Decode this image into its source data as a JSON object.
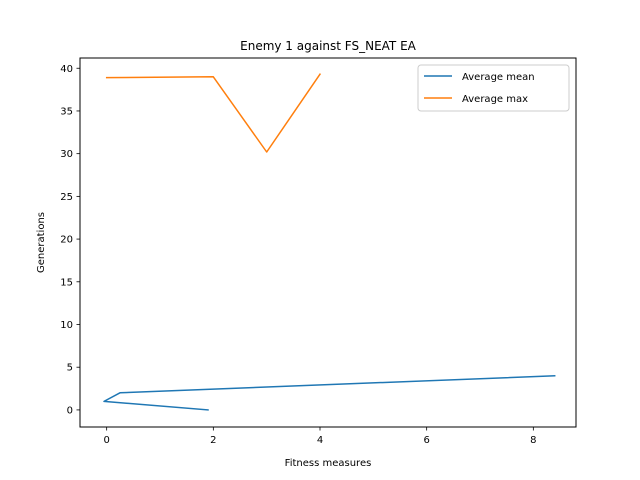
{
  "chart_data": {
    "type": "line",
    "title": "Enemy 1 against FS_NEAT EA",
    "xlabel": "Fitness measures",
    "ylabel": "Generations",
    "xlim": [
      -0.5,
      8.8
    ],
    "ylim": [
      -2.0,
      41.2
    ],
    "xticks": [
      0,
      2,
      4,
      6,
      8
    ],
    "yticks": [
      0,
      5,
      10,
      15,
      20,
      25,
      30,
      35,
      40
    ],
    "xtick_labels": [
      "0",
      "2",
      "4",
      "6",
      "8"
    ],
    "ytick_labels": [
      "0",
      "5",
      "10",
      "15",
      "20",
      "25",
      "30",
      "35",
      "40"
    ],
    "grid": false,
    "legend_position": "upper right",
    "series": [
      {
        "name": "Average mean",
        "color": "#1f77b4",
        "x": [
          1.9,
          -0.05,
          0.25,
          8.4
        ],
        "y": [
          0,
          1,
          2,
          4
        ]
      },
      {
        "name": "Average max",
        "color": "#ff7f0e",
        "x": [
          0,
          2,
          3,
          4
        ],
        "y": [
          38.9,
          39.0,
          30.2,
          39.3
        ]
      }
    ]
  }
}
